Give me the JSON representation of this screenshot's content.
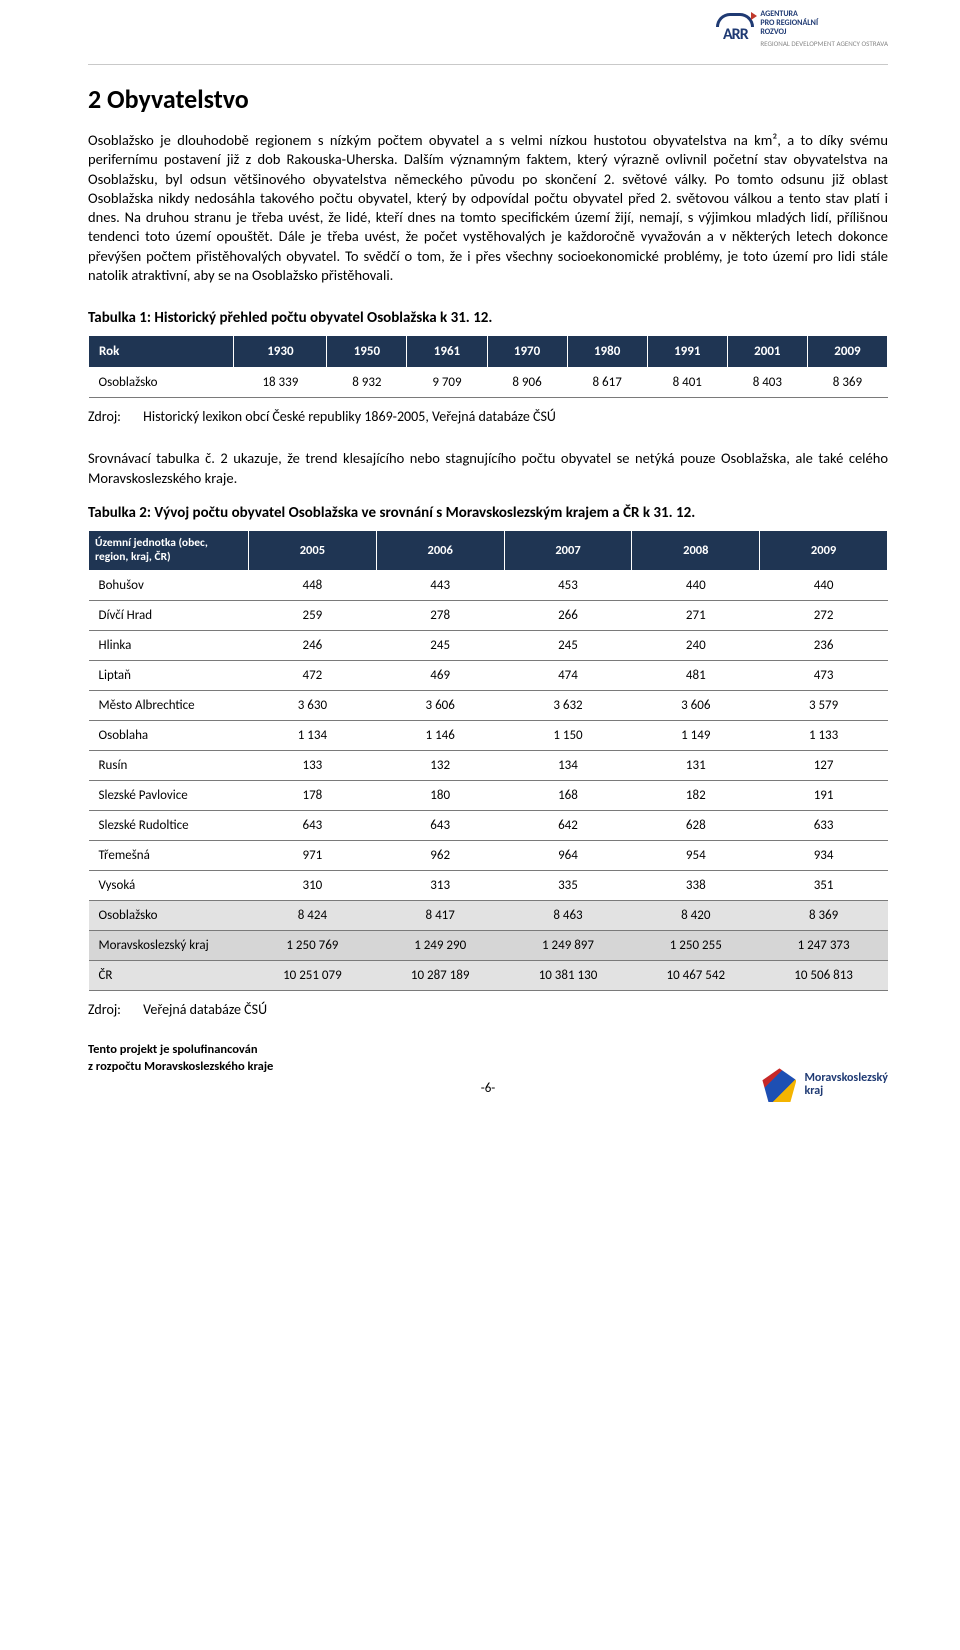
{
  "header": {
    "logo_abbr": "ARR",
    "logo_line1": "AGENTURA",
    "logo_line2": "PRO REGIONÁLNÍ",
    "logo_line3": "ROZVOJ",
    "logo_sub": "REGIONAL DEVELOPMENT AGENCY OSTRAVA"
  },
  "heading": "2   Obyvatelstvo",
  "paragraph": "Osoblažsko je dlouhodobě regionem s nízkým počtem obyvatel a s velmi nízkou hustotou obyvatelstva na km², a to díky svému perifernímu postavení již z dob Rakouska-Uherska. Dalším významným faktem, který výrazně ovlivnil početní stav obyvatelstva na Osoblažsku, byl odsun většinového obyvatelstva německého původu po skončení 2. světové války. Po tomto odsunu již oblast Osoblažska nikdy nedosáhla takového počtu obyvatel, který by odpovídal počtu obyvatel před 2. světovou válkou a tento stav platí i dnes. Na druhou stranu je třeba uvést, že lidé, kteří dnes na tomto specifickém území žijí, nemají, s výjimkou mladých lidí, přílišnou tendenci toto území opouštět. Dále je třeba uvést, že počet vystěhovalých je každoročně vyvažován a v některých letech dokonce převýšen počtem přistěhovalých obyvatel. To svědčí o tom, že i přes všechny socioekonomické problémy, je toto území pro lidi stále natolik atraktivní, aby se na Osoblažsko přistěhovali.",
  "table1": {
    "title": "Tabulka 1: Historický přehled počtu obyvatel Osoblažska k 31. 12.",
    "header_row_label": "Rok",
    "years": [
      "1930",
      "1950",
      "1961",
      "1970",
      "1980",
      "1991",
      "2001",
      "2009"
    ],
    "row_label": "Osoblažsko",
    "values": [
      "18 339",
      "8 932",
      "9 709",
      "8 906",
      "8 617",
      "8 401",
      "8 403",
      "8 369"
    ],
    "header_bg": "#1f3553",
    "header_fg": "#ffffff",
    "border_color": "#7a7a7a"
  },
  "source1": {
    "label": "Zdroj:",
    "text": "Historický lexikon obcí České republiky 1869-2005, Veřejná databáze ČSÚ"
  },
  "midparagraph": "Srovnávací tabulka č. 2 ukazuje, že trend klesajícího nebo stagnujícího počtu obyvatel se netýká pouze Osoblažska, ale také celého Moravskoslezského kraje.",
  "table2": {
    "title": "Tabulka 2: Vývoj počtu obyvatel Osoblažska ve srovnání s Moravskoslezským krajem a ČR k 31. 12.",
    "unit_header": "Územní jednotka (obec, region, kraj, ČR)",
    "years": [
      "2005",
      "2006",
      "2007",
      "2008",
      "2009"
    ],
    "rows": [
      {
        "label": "Bohušov",
        "vals": [
          "448",
          "443",
          "453",
          "440",
          "440"
        ],
        "shade": ""
      },
      {
        "label": "Dívčí Hrad",
        "vals": [
          "259",
          "278",
          "266",
          "271",
          "272"
        ],
        "shade": ""
      },
      {
        "label": "Hlinka",
        "vals": [
          "246",
          "245",
          "245",
          "240",
          "236"
        ],
        "shade": ""
      },
      {
        "label": "Liptaň",
        "vals": [
          "472",
          "469",
          "474",
          "481",
          "473"
        ],
        "shade": ""
      },
      {
        "label": "Město Albrechtice",
        "vals": [
          "3 630",
          "3 606",
          "3 632",
          "3 606",
          "3 579"
        ],
        "shade": ""
      },
      {
        "label": "Osoblaha",
        "vals": [
          "1 134",
          "1 146",
          "1 150",
          "1 149",
          "1 133"
        ],
        "shade": ""
      },
      {
        "label": "Rusín",
        "vals": [
          "133",
          "132",
          "134",
          "131",
          "127"
        ],
        "shade": ""
      },
      {
        "label": "Slezské Pavlovice",
        "vals": [
          "178",
          "180",
          "168",
          "182",
          "191"
        ],
        "shade": ""
      },
      {
        "label": "Slezské Rudoltice",
        "vals": [
          "643",
          "643",
          "642",
          "628",
          "633"
        ],
        "shade": ""
      },
      {
        "label": "Třemešná",
        "vals": [
          "971",
          "962",
          "964",
          "954",
          "934"
        ],
        "shade": ""
      },
      {
        "label": "Vysoká",
        "vals": [
          "310",
          "313",
          "335",
          "338",
          "351"
        ],
        "shade": ""
      },
      {
        "label": "Osoblažsko",
        "vals": [
          "8 424",
          "8 417",
          "8 463",
          "8 420",
          "8 369"
        ],
        "shade": "shade"
      },
      {
        "label": "Moravskoslezský kraj",
        "vals": [
          "1 250 769",
          "1 249 290",
          "1 249 897",
          "1 250 255",
          "1 247 373"
        ],
        "shade": "shade2"
      },
      {
        "label": "ČR",
        "vals": [
          "10 251 079",
          "10 287 189",
          "10 381 130",
          "10 467 542",
          "10 506 813"
        ],
        "shade": "shade"
      }
    ],
    "header_bg": "#1f3553"
  },
  "source2": {
    "label": "Zdroj:",
    "text": "Veřejná databáze ČSÚ"
  },
  "footer": {
    "line1": "Tento projekt je spolufinancován",
    "line2": "z rozpočtu Moravskoslezského kraje",
    "page": "-6-",
    "msk1": "Moravskoslezský",
    "msk2": "kraj"
  }
}
